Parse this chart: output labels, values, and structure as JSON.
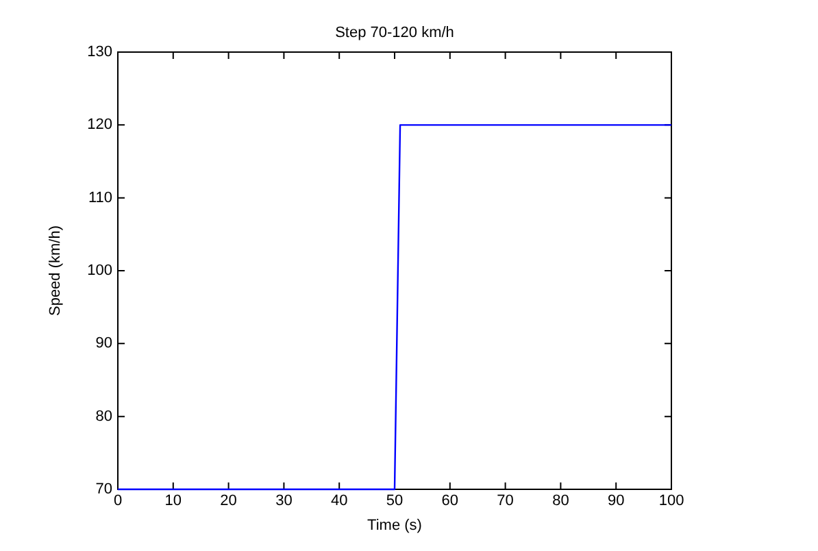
{
  "chart_data": {
    "type": "line",
    "title": "Step 70-120 km/h",
    "xlabel": "Time (s)",
    "ylabel": "Speed (km/h)",
    "x": [
      0,
      50,
      51,
      100
    ],
    "series": [
      {
        "color": "#0000ff",
        "values": [
          70,
          70,
          120,
          120
        ]
      }
    ],
    "xlim": [
      0,
      100
    ],
    "xticks": [
      0,
      10,
      20,
      30,
      40,
      50,
      60,
      70,
      80,
      90,
      100
    ],
    "ylim": [
      70,
      130
    ],
    "yticks": [
      70,
      80,
      90,
      100,
      110,
      120,
      130
    ],
    "grid": false,
    "legend": false,
    "marker": "none",
    "line_style": "solid"
  }
}
